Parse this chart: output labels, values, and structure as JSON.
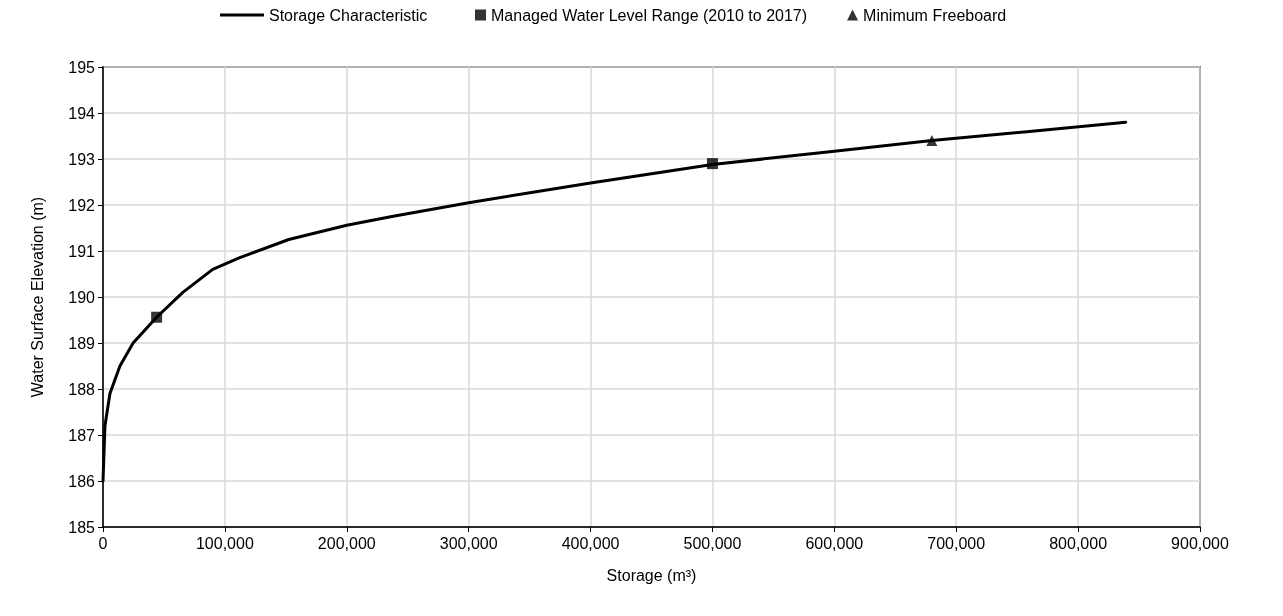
{
  "chart_data": {
    "type": "line",
    "xlabel": "Storage (m³)",
    "ylabel": "Water Surface Elevation (m)",
    "xlim": [
      0,
      900000
    ],
    "xticks": [
      0,
      {
        "value": 100000,
        "label": "100,000"
      },
      {
        "value": 200000,
        "label": "200,000"
      },
      {
        "value": 300000,
        "label": "300,000"
      },
      {
        "value": 400000,
        "label": "400,000"
      },
      {
        "value": 500000,
        "label": "500,000"
      },
      {
        "value": 600000,
        "label": "600,000"
      },
      {
        "value": 700000,
        "label": "700,000"
      },
      {
        "value": 800000,
        "label": "800,000"
      },
      {
        "value": 900000,
        "label": "900,000"
      }
    ],
    "ylim": [
      185,
      195
    ],
    "yticks": [
      185,
      186,
      187,
      188,
      189,
      190,
      191,
      192,
      193,
      194,
      195
    ],
    "grid": true,
    "legend": "top",
    "series": [
      {
        "name": "Storage Characteristic",
        "marker": "none",
        "line_style": "solid",
        "color": "#000000",
        "x": [
          0,
          1600,
          5700,
          13900,
          24700,
          44000,
          65500,
          90000,
          111700,
          152400,
          200000,
          237000,
          300000,
          400000,
          500000,
          600000,
          680000,
          760000,
          839000
        ],
        "values": [
          186.0,
          187.2,
          187.9,
          188.5,
          189.0,
          189.56,
          190.1,
          190.6,
          190.85,
          191.25,
          191.56,
          191.75,
          192.05,
          192.48,
          192.88,
          193.17,
          193.4,
          193.6,
          193.8
        ]
      },
      {
        "name": "Managed Water Level Range (2010 to 2017)",
        "type": "scatter",
        "marker": "square",
        "color": "#000000",
        "x": [
          44000,
          500000
        ],
        "values": [
          189.56,
          192.9
        ]
      },
      {
        "name": "Minimum Freeboard",
        "type": "scatter",
        "marker": "triangle",
        "color": "#000000",
        "x": [
          680000
        ],
        "values": [
          193.4
        ]
      }
    ]
  }
}
